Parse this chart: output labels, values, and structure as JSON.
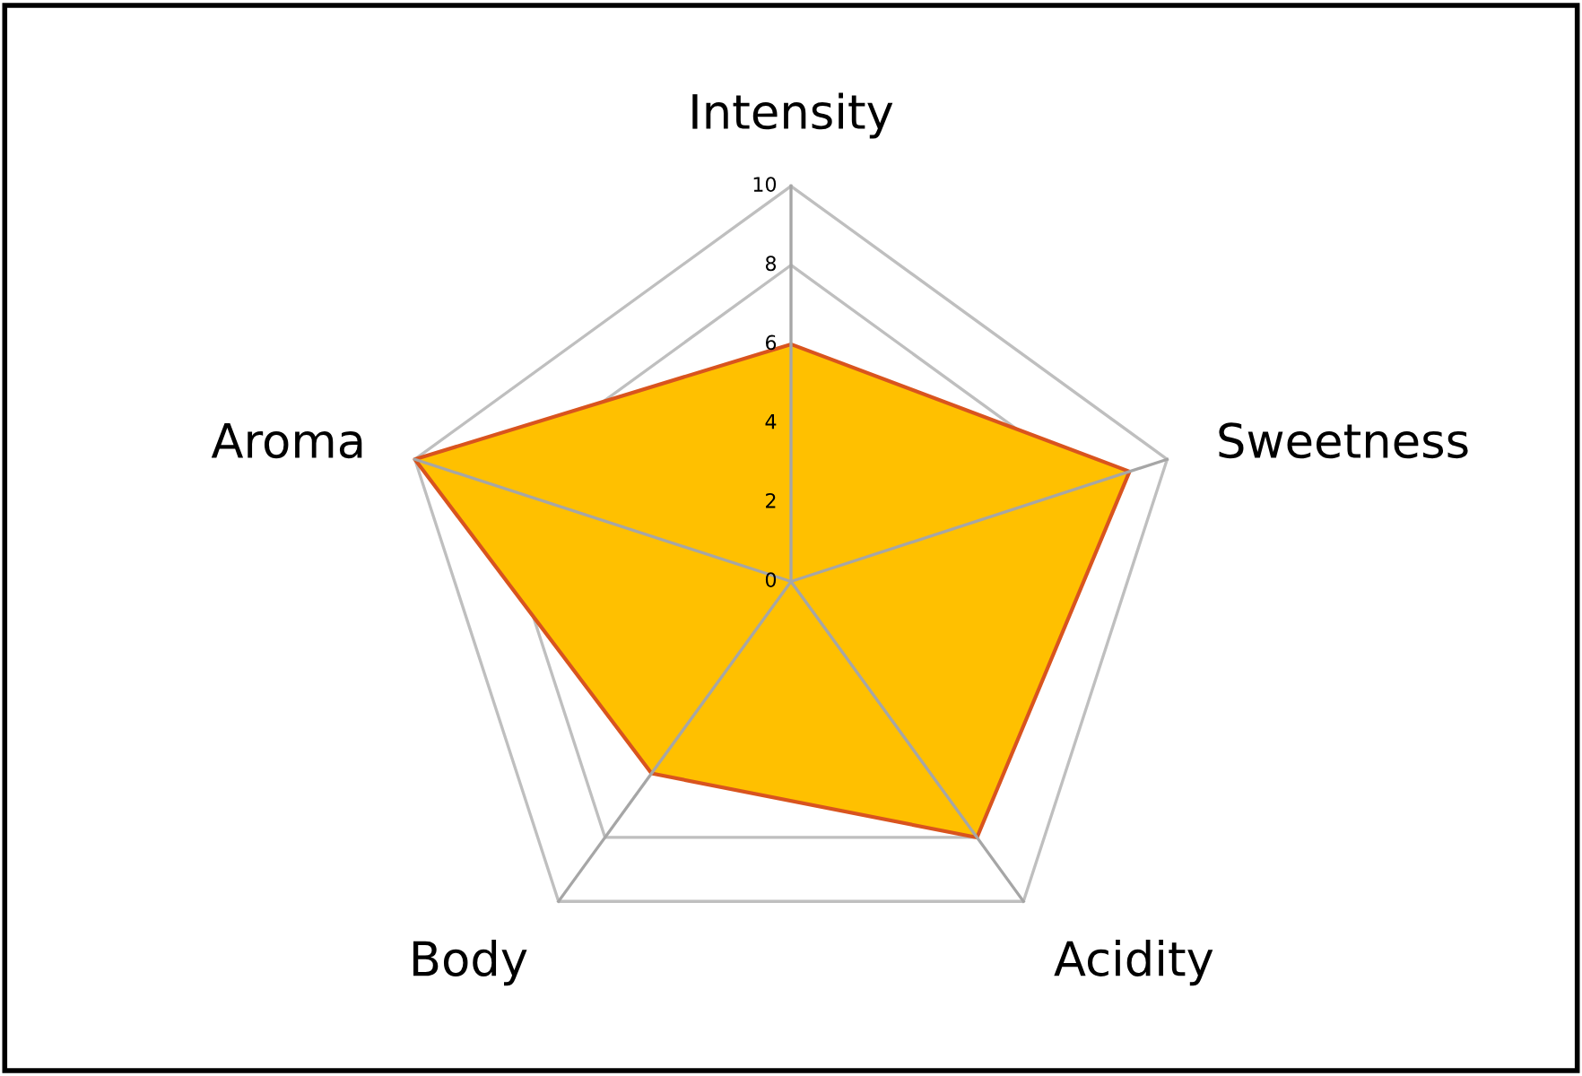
{
  "chart_data": {
    "type": "radar",
    "categories": [
      "Intensity",
      "Sweetness",
      "Acidity",
      "Body",
      "Aroma"
    ],
    "series": [
      {
        "color": "#ffc000",
        "values": [
          6,
          9,
          8,
          6,
          10
        ]
      }
    ],
    "ylim": [
      0,
      10
    ],
    "yticks": [
      0,
      2,
      4,
      6,
      8,
      10
    ],
    "grid": true,
    "legend": false
  }
}
